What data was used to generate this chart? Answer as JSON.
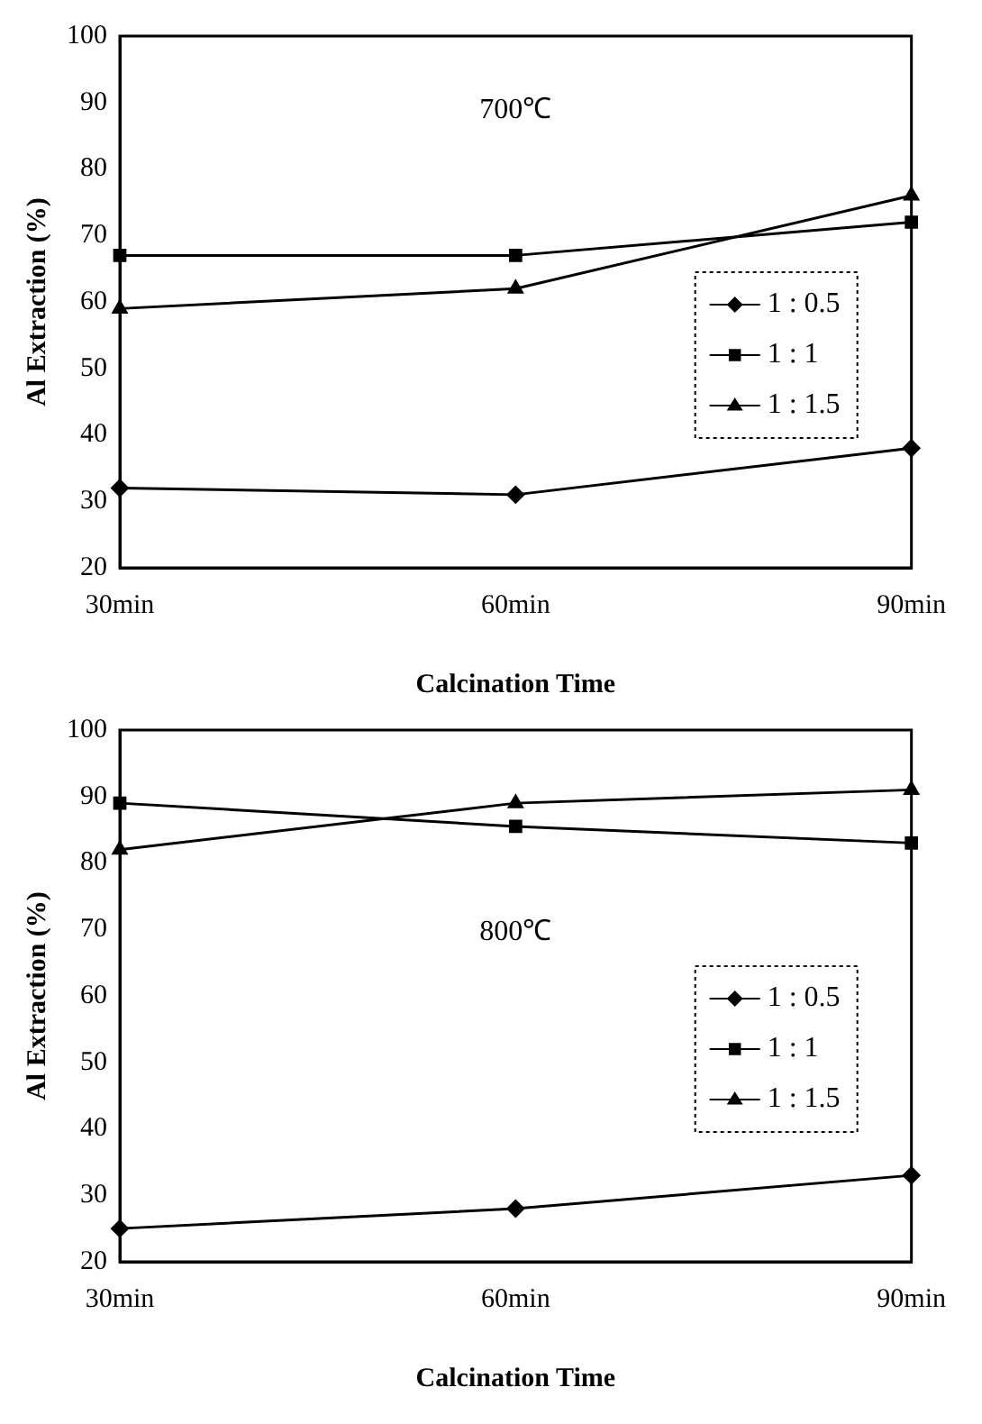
{
  "chart_data": [
    {
      "type": "line",
      "annotations": [
        "700℃"
      ],
      "xlabel": "Calcination Time",
      "ylabel": "Al Extraction (%)",
      "categories": [
        "30min",
        "60min",
        "90min"
      ],
      "ylim": [
        20,
        100
      ],
      "yticks": [
        20,
        30,
        40,
        50,
        60,
        70,
        80,
        90,
        100
      ],
      "grid": false,
      "legend": "right",
      "series": [
        {
          "name": "1 : 0.5",
          "color": "#000000",
          "marker": "diamond",
          "values": [
            32,
            31,
            38
          ]
        },
        {
          "name": "1 : 1",
          "color": "#000000",
          "marker": "square",
          "values": [
            67,
            67,
            72
          ]
        },
        {
          "name": "1 : 1.5",
          "color": "#000000",
          "marker": "triangle",
          "values": [
            59,
            62,
            76
          ]
        }
      ]
    },
    {
      "type": "line",
      "annotations": [
        "800℃"
      ],
      "xlabel": "Calcination Time",
      "ylabel": "Al Extraction (%)",
      "categories": [
        "30min",
        "60min",
        "90min"
      ],
      "ylim": [
        20,
        100
      ],
      "yticks": [
        20,
        30,
        40,
        50,
        60,
        70,
        80,
        90,
        100
      ],
      "grid": false,
      "legend": "right",
      "series": [
        {
          "name": "1 : 0.5",
          "color": "#000000",
          "marker": "diamond",
          "values": [
            25,
            28,
            33
          ]
        },
        {
          "name": "1 : 1",
          "color": "#000000",
          "marker": "square",
          "values": [
            89,
            85.5,
            83
          ]
        },
        {
          "name": "1 : 1.5",
          "color": "#000000",
          "marker": "triangle",
          "values": [
            82,
            89,
            91
          ]
        }
      ]
    }
  ]
}
